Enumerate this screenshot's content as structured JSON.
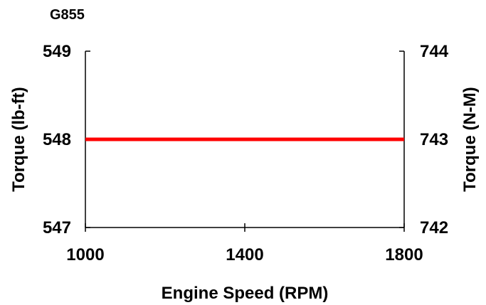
{
  "chart_data": {
    "type": "line",
    "title": "G855",
    "xlabel": "Engine Speed (RPM)",
    "ylabel_left": "Torque (lb-ft)",
    "ylabel_right": "Torque (N-M)",
    "xlim": [
      1000,
      1800
    ],
    "x_ticks": [
      "1000",
      "1400",
      "1800"
    ],
    "ylim_left": [
      547,
      549
    ],
    "y_ticks_left": [
      "547",
      "548",
      "549"
    ],
    "ylim_right": [
      742,
      744
    ],
    "y_ticks_right": [
      "742",
      "743",
      "744"
    ],
    "grid": false,
    "legend": "none",
    "series": [
      {
        "axis": "left",
        "color": "#ff0000",
        "x": [
          1000,
          1800
        ],
        "y": [
          548,
          548
        ]
      }
    ]
  }
}
